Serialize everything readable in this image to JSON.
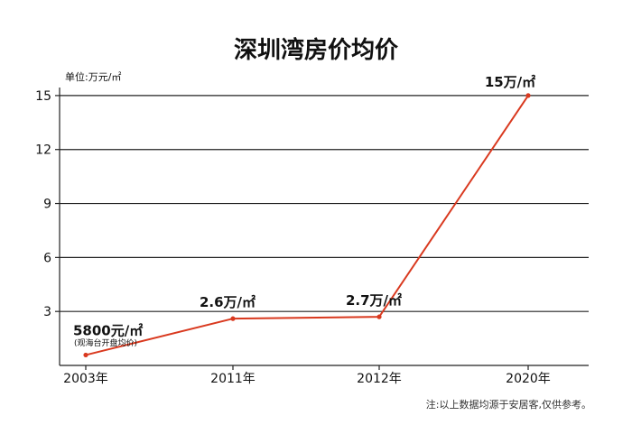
{
  "chart_data": {
    "type": "line",
    "title": "深圳湾房价均价",
    "unit_label": "单位:万元/㎡",
    "categories": [
      "2003年",
      "2011年",
      "2012年",
      "2020年"
    ],
    "values": [
      0.58,
      2.6,
      2.7,
      15
    ],
    "ylim": [
      0,
      16
    ],
    "y_ticks": [
      3,
      6,
      9,
      12,
      15
    ],
    "grid": true,
    "data_labels": [
      "5800元/㎡",
      "2.6万/㎡",
      "2.7万/㎡",
      "15万/㎡"
    ],
    "annotation": "(观海台开盘均价)",
    "line_color": "#d9391f"
  },
  "footnote": "注:以上数据均源于安居客,仅供参考。"
}
